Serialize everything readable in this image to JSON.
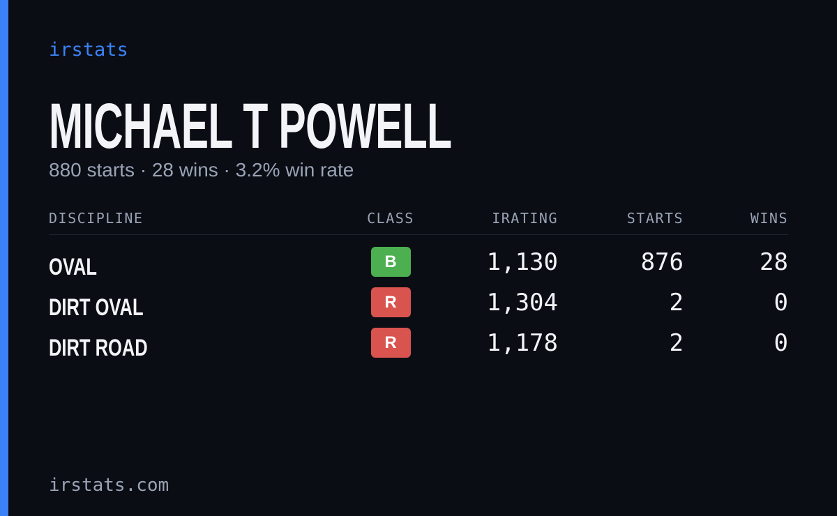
{
  "header": {
    "brand": "irstats",
    "title": "MICHAEL T POWELL",
    "subtitle": "880 starts · 28 wins · 3.2% win rate"
  },
  "table": {
    "columns": [
      "DISCIPLINE",
      "CLASS",
      "IRATING",
      "STARTS",
      "WINS"
    ],
    "rows": [
      [
        "OVAL",
        "B",
        "1,130",
        "876",
        "28"
      ],
      [
        "DIRT OVAL",
        "R",
        "1,304",
        "2",
        "0"
      ],
      [
        "DIRT ROAD",
        "R",
        "1,178",
        "2",
        "0"
      ]
    ],
    "class_colors": {
      "B": "#4caf50",
      "R": "#d9534f"
    }
  },
  "footer": {
    "site": "irstats.com"
  }
}
